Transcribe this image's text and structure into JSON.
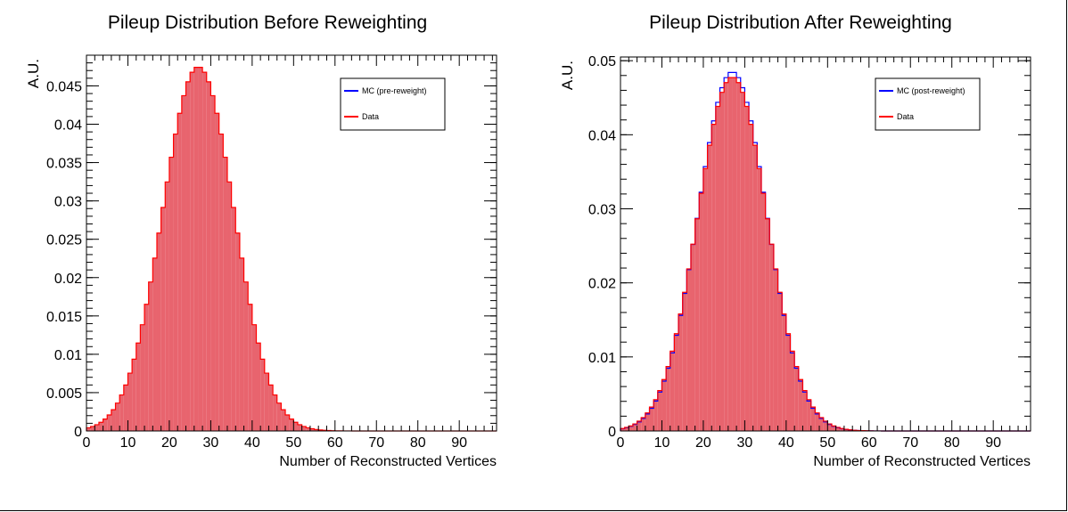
{
  "chart_data": [
    {
      "type": "histogram",
      "title": "Pileup Distribution Before Reweighting",
      "xlabel": "Number of Reconstructed Vertices",
      "ylabel": "A.U.",
      "xlim": [
        0,
        99
      ],
      "ylim": [
        0,
        0.049
      ],
      "bin_width": 1,
      "yticks": [
        0,
        0.005,
        0.01,
        0.015,
        0.02,
        0.025,
        0.03,
        0.035,
        0.04,
        0.045
      ],
      "ytick_labels": [
        "0",
        "0.005",
        "0.01",
        "0.015",
        "0.02",
        "0.025",
        "0.03",
        "0.035",
        "0.04",
        "0.045"
      ],
      "xticks": [
        0,
        10,
        20,
        30,
        40,
        50,
        60,
        70,
        80,
        90
      ],
      "xtick_labels": [
        "0",
        "10",
        "20",
        "30",
        "40",
        "50",
        "60",
        "70",
        "80",
        "90"
      ],
      "legend": {
        "placement": "top-right",
        "entries": [
          {
            "label": "MC (pre-reweight)",
            "color": "#0000ff"
          },
          {
            "label": "Data",
            "color": "#ff0000"
          }
        ]
      },
      "series": [
        {
          "name": "Data",
          "color": "#ff0000",
          "fill": "#e8646e",
          "mean": 27,
          "sigma": 8.6,
          "peak": 0.0475
        }
      ]
    },
    {
      "type": "histogram",
      "title": "Pileup Distribution After Reweighting",
      "xlabel": "Number of Reconstructed Vertices",
      "ylabel": "A.U.",
      "xlim": [
        0,
        99
      ],
      "ylim": [
        0,
        0.0505
      ],
      "bin_width": 1,
      "yticks": [
        0,
        0.01,
        0.02,
        0.03,
        0.04,
        0.05
      ],
      "ytick_labels": [
        "0",
        "0.01",
        "0.02",
        "0.03",
        "0.04",
        "0.05"
      ],
      "xticks": [
        0,
        10,
        20,
        30,
        40,
        50,
        60,
        70,
        80,
        90
      ],
      "xtick_labels": [
        "0",
        "10",
        "20",
        "30",
        "40",
        "50",
        "60",
        "70",
        "80",
        "90"
      ],
      "legend": {
        "placement": "top-right",
        "entries": [
          {
            "label": "MC (post-reweight)",
            "color": "#0000ff"
          },
          {
            "label": "Data",
            "color": "#ff0000"
          }
        ]
      },
      "series": [
        {
          "name": "MC (post-reweight)",
          "color": "#0000ff",
          "mean": 27,
          "sigma": 8.3,
          "peak": 0.0485
        },
        {
          "name": "Data",
          "color": "#ff0000",
          "fill": "#e8646e",
          "mean": 27,
          "sigma": 8.4,
          "peak": 0.0478
        }
      ]
    }
  ]
}
